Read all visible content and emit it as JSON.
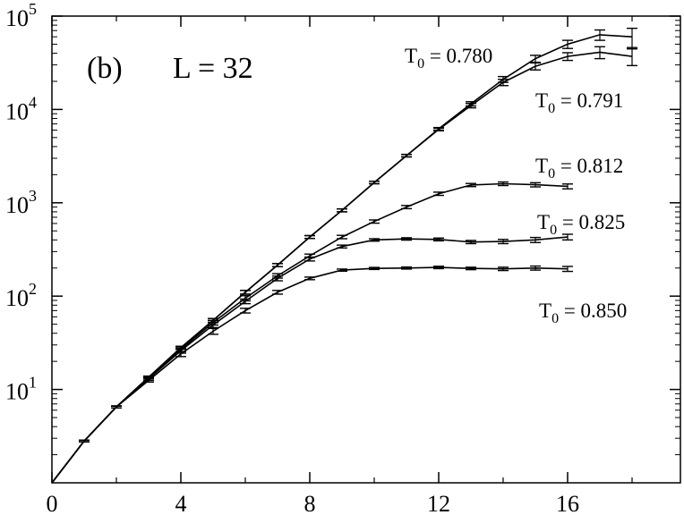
{
  "chart_data": {
    "type": "line",
    "panel_label": "(b)",
    "size_label": "L = 32",
    "xlim": [
      0,
      19.5
    ],
    "ylim": [
      0,
      5
    ],
    "y_scale": "log",
    "x_ticks": [
      0,
      4,
      8,
      12,
      16
    ],
    "y_ticks": [
      {
        "exp": 1,
        "base": "10",
        "sup": "1"
      },
      {
        "exp": 2,
        "base": "10",
        "sup": "2"
      },
      {
        "exp": 3,
        "base": "10",
        "sup": "3"
      },
      {
        "exp": 4,
        "base": "10",
        "sup": "4"
      },
      {
        "exp": 5,
        "base": "10",
        "sup": "5"
      }
    ],
    "series": [
      {
        "label": {
          "pre": "T",
          "sub": "0",
          "post": " = 0.780"
        },
        "x": [
          0,
          1,
          2,
          3,
          4,
          5,
          6,
          7,
          8,
          9,
          10,
          11,
          12,
          13,
          14,
          15,
          16,
          17,
          18
        ],
        "y": [
          1,
          2.8,
          6.5,
          13.5,
          28,
          55,
          110,
          215,
          430,
          830,
          1650,
          3200,
          6200,
          11500,
          21000,
          35000,
          50000,
          63000,
          60000
        ],
        "err": [
          0,
          0.06,
          0.15,
          0.4,
          1,
          2.5,
          5,
          8,
          15,
          30,
          50,
          100,
          200,
          600,
          1500,
          3000,
          5000,
          8000,
          14000
        ]
      },
      {
        "label": {
          "pre": "T",
          "sub": "0",
          "post": " = 0.791"
        },
        "x": [
          0,
          1,
          2,
          3,
          4,
          5,
          6,
          7,
          8,
          9,
          10,
          11,
          12,
          13,
          14,
          15,
          16,
          17,
          18
        ],
        "y": [
          1,
          2.8,
          6.5,
          13.5,
          28,
          55,
          110,
          215,
          430,
          830,
          1650,
          3200,
          6100,
          11000,
          19500,
          29000,
          37000,
          41000,
          37000
        ],
        "err": [
          0,
          0.06,
          0.15,
          0.4,
          1,
          2.5,
          5,
          8,
          15,
          30,
          50,
          100,
          200,
          600,
          1500,
          2500,
          3500,
          6000,
          7500
        ]
      },
      {
        "label": {
          "pre": "T",
          "sub": "0",
          "post": " = 0.812"
        },
        "x": [
          0,
          1,
          2,
          3,
          4,
          5,
          6,
          7,
          8,
          9,
          10,
          11,
          12,
          13,
          14,
          15,
          16
        ],
        "y": [
          1,
          2.8,
          6.5,
          13.5,
          27,
          52,
          95,
          165,
          270,
          430,
          630,
          900,
          1250,
          1550,
          1600,
          1560,
          1500
        ],
        "err": [
          0,
          0.06,
          0.15,
          0.4,
          1.5,
          3,
          6,
          9,
          12,
          18,
          25,
          35,
          50,
          60,
          70,
          80,
          90
        ]
      },
      {
        "label": {
          "pre": "T",
          "sub": "0",
          "post": " = 0.825"
        },
        "x": [
          0,
          1,
          2,
          3,
          4,
          5,
          6,
          7,
          8,
          9,
          10,
          11,
          12,
          13,
          14,
          15,
          16
        ],
        "y": [
          1,
          2.8,
          6.5,
          13,
          26,
          49,
          88,
          155,
          250,
          340,
          400,
          410,
          405,
          380,
          385,
          400,
          430
        ],
        "err": [
          0,
          0.06,
          0.15,
          0.5,
          1.5,
          3,
          5,
          9,
          12,
          12,
          12,
          12,
          14,
          15,
          20,
          25,
          30
        ]
      },
      {
        "label": {
          "pre": "T",
          "sub": "0",
          "post": " = 0.850"
        },
        "x": [
          0,
          1,
          2,
          3,
          4,
          5,
          6,
          7,
          8,
          9,
          10,
          11,
          12,
          13,
          14,
          15,
          16
        ],
        "y": [
          1,
          2.8,
          6.5,
          12.5,
          24,
          42,
          70,
          110,
          155,
          190,
          198,
          200,
          203,
          198,
          196,
          200,
          196
        ],
        "err": [
          0,
          0.06,
          0.15,
          0.5,
          1.5,
          3,
          4,
          5,
          5,
          5,
          5,
          5,
          6,
          6,
          8,
          10,
          12
        ]
      }
    ]
  }
}
